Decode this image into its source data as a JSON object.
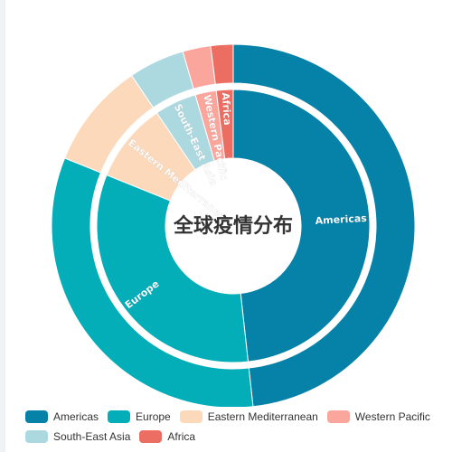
{
  "chart_data": {
    "type": "pie",
    "variant": "nested-donut",
    "title": "全球疫情分布",
    "categories": [
      "Americas",
      "Europe",
      "Eastern Mediterranean",
      "South-East Asia",
      "Western Pacific",
      "Africa"
    ],
    "series": [
      {
        "name": "outer",
        "values": [
          48.5,
          33.0,
          9.5,
          5.0,
          2.5,
          2.0
        ]
      },
      {
        "name": "inner",
        "values": [
          48.5,
          33.0,
          9.5,
          5.0,
          2.5,
          2.0
        ]
      }
    ],
    "inner_labels_shown": [
      "Americas",
      "Europe",
      "Eastern Mediterranean",
      "South-East Asia",
      "Western Pacific",
      "Africa"
    ],
    "colors": {
      "Americas": "#0681a8",
      "Europe": "#04aeb8",
      "Eastern Mediterranean": "#fcd9ba",
      "South-East Asia": "#acd8e0",
      "Western Pacific": "#fba69d",
      "Africa": "#ec6d62"
    },
    "legend": {
      "position": "bottom",
      "items": [
        "Americas",
        "Europe",
        "Eastern Mediterranean",
        "Western Pacific",
        "South-East Asia",
        "Africa"
      ]
    }
  }
}
